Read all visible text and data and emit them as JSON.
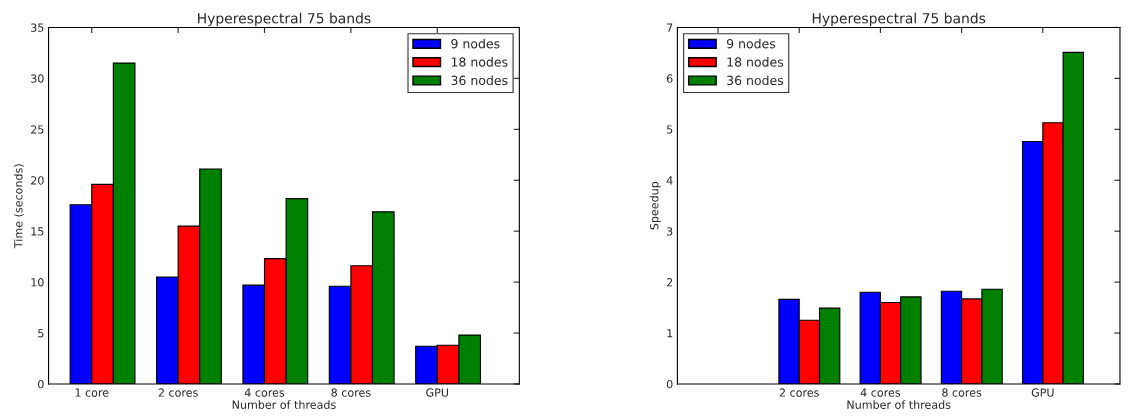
{
  "chart_data": [
    {
      "type": "bar",
      "title": "Hyperespectral 75 bands",
      "xlabel": "Number of threads",
      "ylabel": "Time (seconds)",
      "categories": [
        "1 core",
        "2 cores",
        "4 cores",
        "8 cores",
        "GPU"
      ],
      "series": [
        {
          "name": "9 nodes",
          "color": "#0000ff",
          "values": [
            17.6,
            10.5,
            9.7,
            9.6,
            3.7
          ]
        },
        {
          "name": "18 nodes",
          "color": "#ff0000",
          "values": [
            19.6,
            15.5,
            12.3,
            11.6,
            3.8
          ]
        },
        {
          "name": "36 nodes",
          "color": "#008000",
          "values": [
            31.5,
            21.1,
            18.2,
            16.9,
            4.8
          ]
        }
      ],
      "ylim": [
        0,
        35
      ],
      "yticks": [
        0,
        5,
        10,
        15,
        20,
        25,
        30,
        35
      ],
      "grid": false,
      "legend": "top right"
    },
    {
      "type": "bar",
      "title": "Hyperespectral 75 bands",
      "xlabel": "Number of threads",
      "ylabel": "Speedup",
      "categories": [
        null,
        "2 cores",
        "4 cores",
        "8 cores",
        "GPU"
      ],
      "series": [
        {
          "name": "9 nodes",
          "color": "#0000ff",
          "values": [
            null,
            1.66,
            1.8,
            1.82,
            4.76
          ]
        },
        {
          "name": "18 nodes",
          "color": "#ff0000",
          "values": [
            null,
            1.25,
            1.6,
            1.67,
            5.13
          ]
        },
        {
          "name": "36 nodes",
          "color": "#008000",
          "values": [
            null,
            1.49,
            1.71,
            1.86,
            6.51
          ]
        }
      ],
      "ylim": [
        0,
        7
      ],
      "yticks": [
        0,
        1,
        2,
        3,
        4,
        5,
        6,
        7
      ],
      "grid": false,
      "legend": "top left"
    }
  ]
}
